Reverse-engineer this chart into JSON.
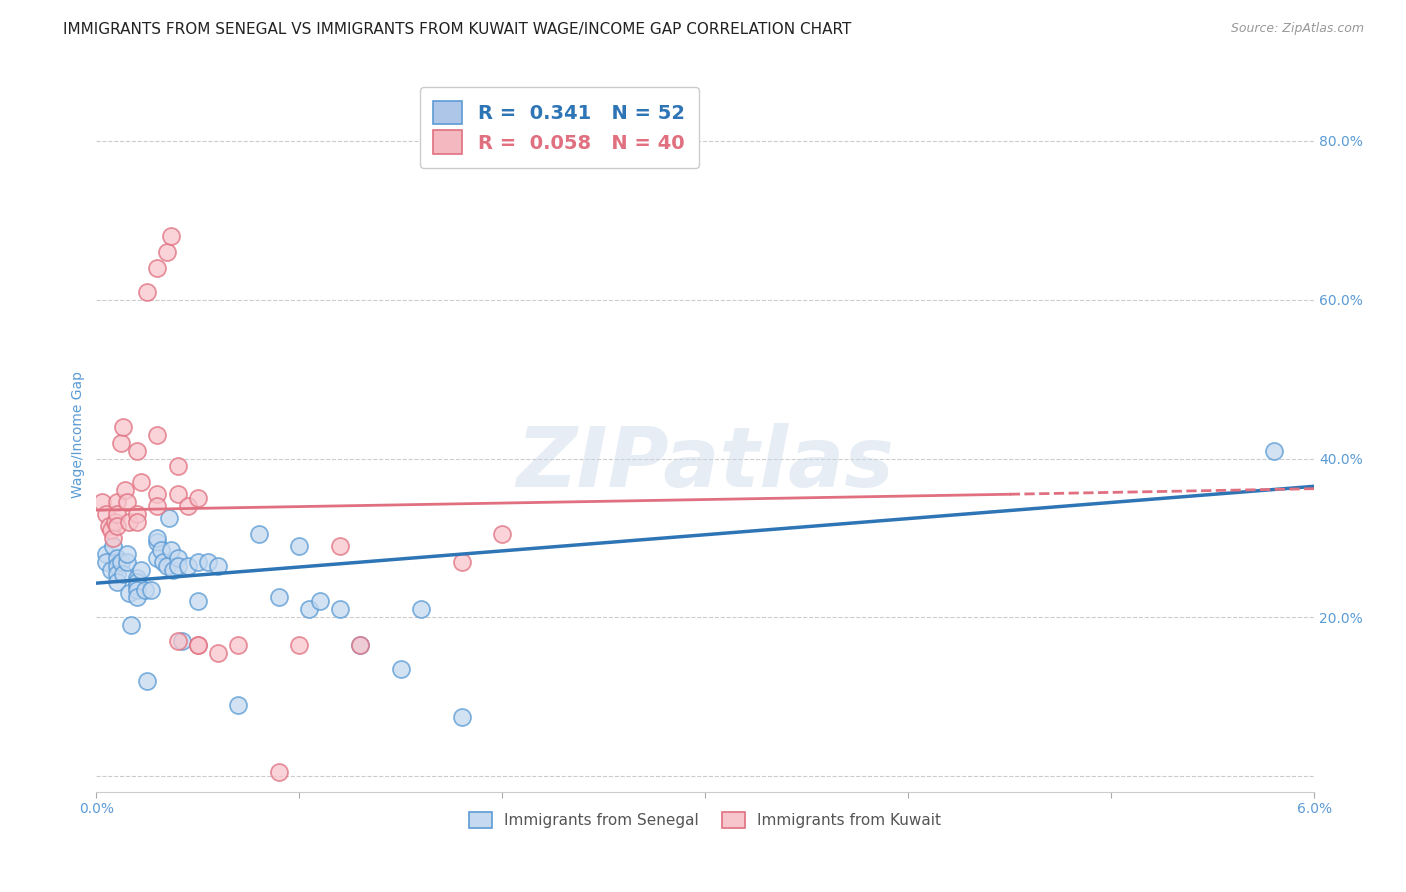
{
  "title": "IMMIGRANTS FROM SENEGAL VS IMMIGRANTS FROM KUWAIT WAGE/INCOME GAP CORRELATION CHART",
  "source": "Source: ZipAtlas.com",
  "ylabel": "Wage/Income Gap",
  "xlim": [
    0.0,
    0.06
  ],
  "ylim": [
    -0.02,
    0.88
  ],
  "xticks": [
    0.0,
    0.01,
    0.02,
    0.03,
    0.04,
    0.05,
    0.06
  ],
  "xticklabels": [
    "0.0%",
    "",
    "",
    "",
    "",
    "",
    "6.0%"
  ],
  "yticks": [
    0.0,
    0.2,
    0.4,
    0.6,
    0.8
  ],
  "yticklabels": [
    "",
    "20.0%",
    "40.0%",
    "60.0%",
    "80.0%"
  ],
  "legend_r_entries": [
    {
      "label_r": "R = ",
      "r_val": " 0.341",
      "label_n": "  N = ",
      "n_val": "52",
      "color": "#aec6e8",
      "edge": "#5b9bd5"
    },
    {
      "label_r": "R = ",
      "r_val": " 0.058",
      "label_n": "  N = ",
      "n_val": "40",
      "color": "#f4b8c1",
      "edge": "#e07080"
    }
  ],
  "series_senegal": {
    "face_color": "#c5d9f0",
    "edge_color": "#5b9bd5",
    "x": [
      0.0005,
      0.0005,
      0.0007,
      0.0008,
      0.001,
      0.001,
      0.001,
      0.001,
      0.0012,
      0.0013,
      0.0015,
      0.0015,
      0.0016,
      0.0017,
      0.002,
      0.002,
      0.002,
      0.002,
      0.002,
      0.0022,
      0.0024,
      0.0025,
      0.0027,
      0.003,
      0.003,
      0.003,
      0.0032,
      0.0033,
      0.0035,
      0.0036,
      0.0037,
      0.0038,
      0.004,
      0.004,
      0.0042,
      0.0045,
      0.005,
      0.005,
      0.0055,
      0.006,
      0.007,
      0.008,
      0.009,
      0.01,
      0.0105,
      0.011,
      0.012,
      0.013,
      0.015,
      0.016,
      0.018,
      0.058
    ],
    "y": [
      0.28,
      0.27,
      0.26,
      0.29,
      0.275,
      0.265,
      0.255,
      0.245,
      0.27,
      0.255,
      0.27,
      0.28,
      0.23,
      0.19,
      0.25,
      0.245,
      0.24,
      0.235,
      0.225,
      0.26,
      0.235,
      0.12,
      0.235,
      0.295,
      0.3,
      0.275,
      0.285,
      0.27,
      0.265,
      0.325,
      0.285,
      0.26,
      0.275,
      0.265,
      0.17,
      0.265,
      0.27,
      0.22,
      0.27,
      0.265,
      0.09,
      0.305,
      0.225,
      0.29,
      0.21,
      0.22,
      0.21,
      0.165,
      0.135,
      0.21,
      0.075,
      0.41
    ]
  },
  "series_kuwait": {
    "face_color": "#f7c5cc",
    "edge_color": "#e07080",
    "x": [
      0.0003,
      0.0005,
      0.0006,
      0.0007,
      0.0008,
      0.0009,
      0.001,
      0.001,
      0.001,
      0.0012,
      0.0013,
      0.0014,
      0.0015,
      0.0016,
      0.002,
      0.002,
      0.002,
      0.0022,
      0.0025,
      0.003,
      0.003,
      0.003,
      0.003,
      0.0035,
      0.0037,
      0.004,
      0.004,
      0.004,
      0.0045,
      0.005,
      0.005,
      0.005,
      0.006,
      0.007,
      0.009,
      0.01,
      0.012,
      0.013,
      0.018,
      0.02
    ],
    "y": [
      0.345,
      0.33,
      0.315,
      0.31,
      0.3,
      0.32,
      0.345,
      0.33,
      0.315,
      0.42,
      0.44,
      0.36,
      0.345,
      0.32,
      0.41,
      0.33,
      0.32,
      0.37,
      0.61,
      0.64,
      0.43,
      0.355,
      0.34,
      0.66,
      0.68,
      0.39,
      0.355,
      0.17,
      0.34,
      0.35,
      0.165,
      0.165,
      0.155,
      0.165,
      0.005,
      0.165,
      0.29,
      0.165,
      0.27,
      0.305
    ]
  },
  "blue_line": {
    "x0": 0.0,
    "x1": 0.06,
    "y0": 0.243,
    "y1": 0.365
  },
  "pink_line_solid": {
    "x0": 0.0,
    "x1": 0.045,
    "y0": 0.335,
    "y1": 0.355
  },
  "pink_line_dashed": {
    "x0": 0.045,
    "x1": 0.06,
    "y0": 0.355,
    "y1": 0.362
  },
  "watermark_text": "ZIPatlas",
  "background_color": "#ffffff",
  "grid_color": "#cccccc",
  "title_fontsize": 11,
  "tick_fontsize": 10,
  "ylabel_color": "#5b9bd5",
  "yticklabels_color": "#5b9bd5",
  "xticklabels_color": "#5b9bd5"
}
